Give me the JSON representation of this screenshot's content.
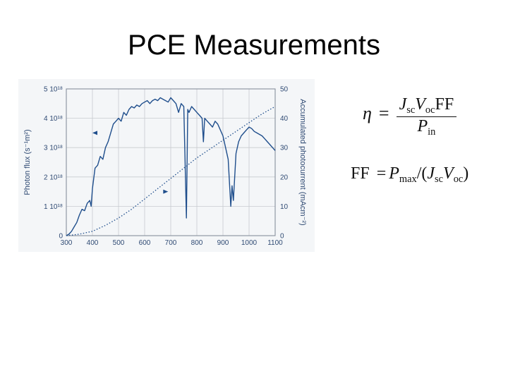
{
  "slide": {
    "title": "PCE Measurements"
  },
  "colors": {
    "series": "#1f4e8c",
    "axis_text": "#2f4a73",
    "grid": "#c8cbcf",
    "chart_bg": "#f4f6f8"
  },
  "chart_data": {
    "type": "line",
    "xlabel": "",
    "ylabel": "Photon flux (s⁻¹m²)",
    "y2label": "Accumulated photocurrent (mAcm⁻²)",
    "xlim": [
      300,
      1100
    ],
    "ylim": [
      0,
      5
    ],
    "y2lim": [
      0,
      50
    ],
    "xticks": [
      "300",
      "400",
      "500",
      "600",
      "700",
      "800",
      "900",
      "1000",
      "1100"
    ],
    "yticks": [
      "0",
      "1 10¹⁸",
      "2 10¹⁸",
      "3 10¹⁸",
      "4 10¹⁸",
      "5 10¹⁸"
    ],
    "y2ticks": [
      "0",
      "10",
      "20",
      "30",
      "40",
      "50"
    ],
    "grid": true,
    "series": [
      {
        "style": "solid",
        "axis": "left",
        "points": [
          [
            300,
            0
          ],
          [
            310,
            0.05
          ],
          [
            320,
            0.15
          ],
          [
            330,
            0.3
          ],
          [
            340,
            0.45
          ],
          [
            350,
            0.7
          ],
          [
            360,
            0.9
          ],
          [
            370,
            0.85
          ],
          [
            380,
            1.1
          ],
          [
            390,
            1.2
          ],
          [
            395,
            1.0
          ],
          [
            400,
            1.6
          ],
          [
            410,
            2.3
          ],
          [
            420,
            2.4
          ],
          [
            430,
            2.7
          ],
          [
            440,
            2.6
          ],
          [
            450,
            3.0
          ],
          [
            460,
            3.2
          ],
          [
            470,
            3.5
          ],
          [
            480,
            3.8
          ],
          [
            490,
            3.9
          ],
          [
            500,
            4.0
          ],
          [
            510,
            3.9
          ],
          [
            520,
            4.2
          ],
          [
            530,
            4.1
          ],
          [
            540,
            4.3
          ],
          [
            550,
            4.4
          ],
          [
            560,
            4.35
          ],
          [
            570,
            4.45
          ],
          [
            580,
            4.4
          ],
          [
            590,
            4.5
          ],
          [
            600,
            4.55
          ],
          [
            610,
            4.6
          ],
          [
            620,
            4.5
          ],
          [
            630,
            4.6
          ],
          [
            640,
            4.65
          ],
          [
            650,
            4.6
          ],
          [
            660,
            4.7
          ],
          [
            670,
            4.65
          ],
          [
            680,
            4.6
          ],
          [
            690,
            4.55
          ],
          [
            700,
            4.7
          ],
          [
            710,
            4.6
          ],
          [
            720,
            4.5
          ],
          [
            730,
            4.2
          ],
          [
            740,
            4.5
          ],
          [
            750,
            4.4
          ],
          [
            760,
            0.6
          ],
          [
            765,
            4.3
          ],
          [
            770,
            4.2
          ],
          [
            780,
            4.4
          ],
          [
            790,
            4.3
          ],
          [
            800,
            4.2
          ],
          [
            810,
            4.1
          ],
          [
            820,
            4.0
          ],
          [
            825,
            3.2
          ],
          [
            830,
            4.0
          ],
          [
            840,
            3.9
          ],
          [
            850,
            3.8
          ],
          [
            860,
            3.7
          ],
          [
            870,
            3.9
          ],
          [
            880,
            3.8
          ],
          [
            890,
            3.6
          ],
          [
            900,
            3.4
          ],
          [
            910,
            3.0
          ],
          [
            920,
            2.6
          ],
          [
            930,
            1.0
          ],
          [
            935,
            1.7
          ],
          [
            940,
            1.2
          ],
          [
            950,
            2.8
          ],
          [
            960,
            3.2
          ],
          [
            970,
            3.4
          ],
          [
            980,
            3.5
          ],
          [
            990,
            3.6
          ],
          [
            1000,
            3.7
          ],
          [
            1010,
            3.65
          ],
          [
            1020,
            3.55
          ],
          [
            1030,
            3.5
          ],
          [
            1040,
            3.45
          ],
          [
            1050,
            3.4
          ],
          [
            1060,
            3.3
          ],
          [
            1070,
            3.2
          ],
          [
            1080,
            3.1
          ],
          [
            1090,
            3.0
          ],
          [
            1100,
            2.9
          ]
        ]
      },
      {
        "style": "dotted",
        "axis": "right",
        "points": [
          [
            300,
            0
          ],
          [
            350,
            0.5
          ],
          [
            400,
            1.5
          ],
          [
            450,
            3.5
          ],
          [
            500,
            6
          ],
          [
            550,
            9
          ],
          [
            600,
            12.5
          ],
          [
            650,
            16
          ],
          [
            700,
            19.5
          ],
          [
            750,
            23
          ],
          [
            800,
            26.5
          ],
          [
            850,
            29.5
          ],
          [
            900,
            32.5
          ],
          [
            950,
            35.5
          ],
          [
            1000,
            38.5
          ],
          [
            1050,
            41.5
          ],
          [
            1100,
            44
          ]
        ]
      }
    ],
    "annotations": [
      {
        "type": "arrow",
        "direction": "left",
        "x": 400,
        "y": 3.5
      },
      {
        "type": "arrow",
        "direction": "right",
        "x": 690,
        "y": 1.5
      }
    ]
  },
  "equations": {
    "efficiency": {
      "lhs": "η",
      "eq": "=",
      "num_j": "J",
      "num_j_sub": "sc",
      "num_v": "V",
      "num_v_sub": "oc",
      "num_ff": "FF",
      "den_p": "P",
      "den_p_sub": "in"
    },
    "fill_factor": {
      "lhs": "FF",
      "eq": "=",
      "p": "P",
      "p_sub": "max",
      "mid": "/(",
      "j": "J",
      "j_sub": "sc",
      "v": "V",
      "v_sub": "oc",
      "close": ")"
    }
  }
}
